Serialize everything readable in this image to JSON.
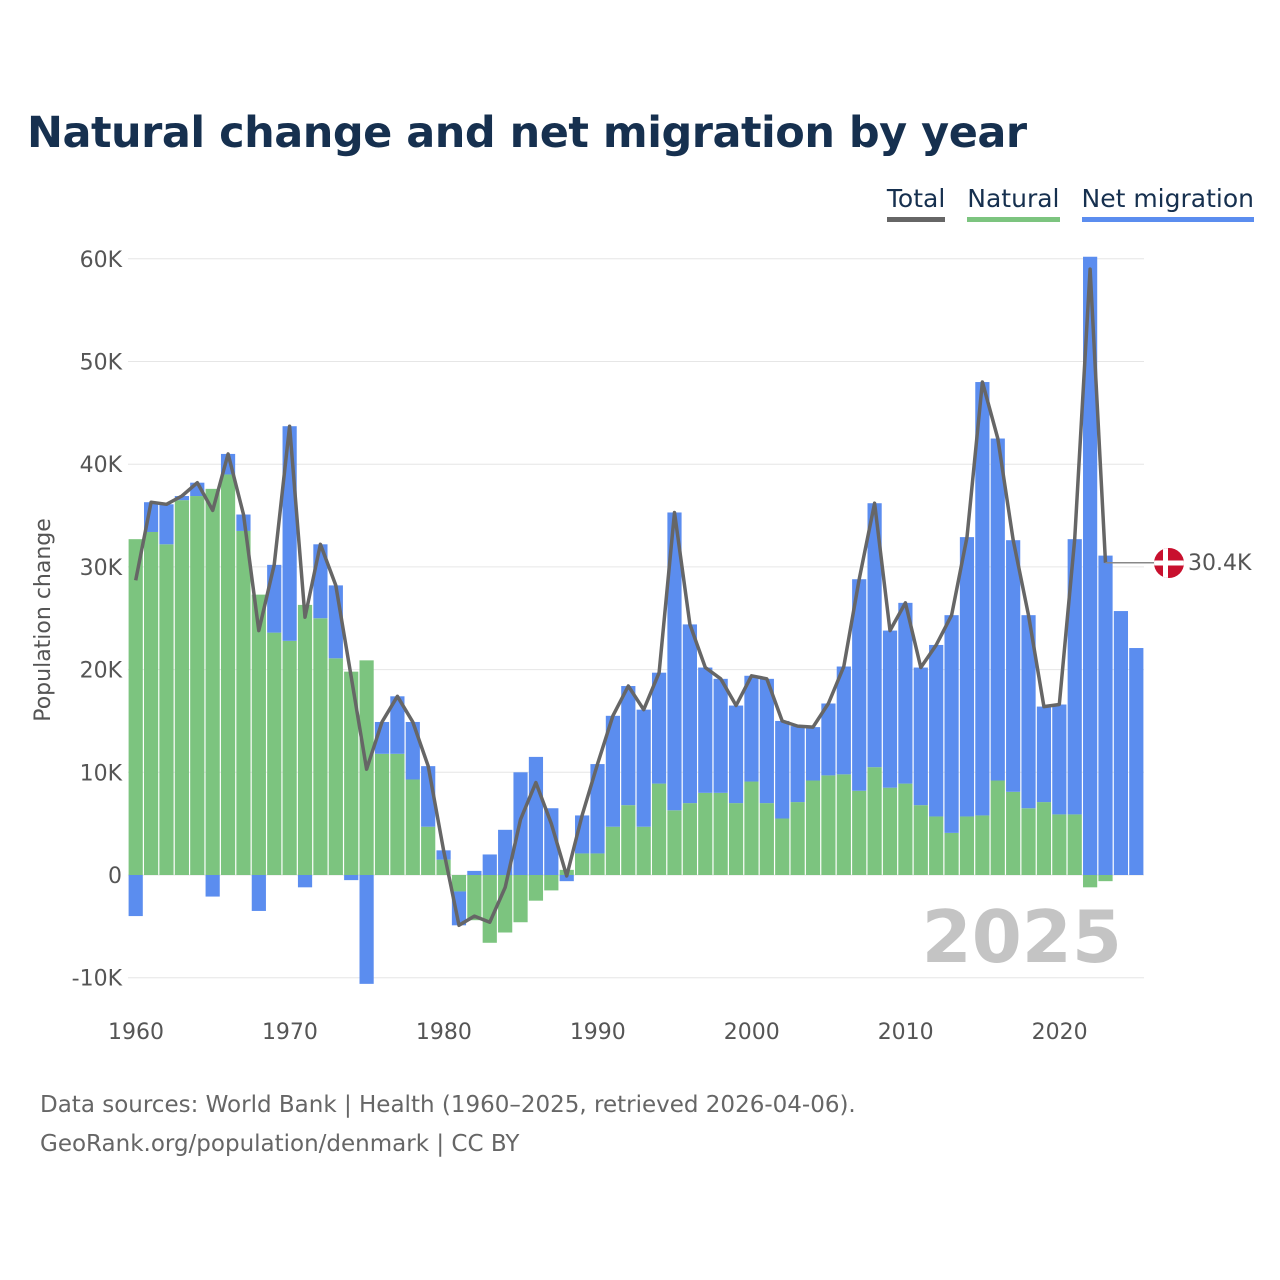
{
  "title": "Natural change and net migration by year",
  "legend": [
    {
      "label": "Total",
      "color": "#666666"
    },
    {
      "label": "Natural",
      "color": "#7cc47f"
    },
    {
      "label": "Net migration",
      "color": "#5b8def"
    }
  ],
  "watermark_year": "2025",
  "end_label": "30.4K",
  "footer": {
    "line1": "Data sources: World Bank | Health (1960–2025, retrieved 2026-04-06).",
    "line2": "GeoRank.org/population/denmark | CC BY"
  },
  "chart_data": {
    "type": "bar",
    "stacked": true,
    "title": "Natural change and net migration by year",
    "xlabel": "",
    "ylabel": "Population change",
    "ylim": [
      -13000,
      61000
    ],
    "yticks": [
      -10000,
      0,
      10000,
      20000,
      30000,
      40000,
      50000,
      60000
    ],
    "ytick_labels": [
      "-10K",
      "0",
      "10K",
      "20K",
      "30K",
      "40K",
      "50K",
      "60K"
    ],
    "xticks": [
      1960,
      1970,
      1980,
      1990,
      2000,
      2010,
      2020
    ],
    "xtick_labels": [
      "1960",
      "1970",
      "1980",
      "1990",
      "2000",
      "2010",
      "2020"
    ],
    "legend_position": "top-right",
    "grid": true,
    "years": [
      1960,
      1961,
      1962,
      1963,
      1964,
      1965,
      1966,
      1967,
      1968,
      1969,
      1970,
      1971,
      1972,
      1973,
      1974,
      1975,
      1976,
      1977,
      1978,
      1979,
      1980,
      1981,
      1982,
      1983,
      1984,
      1985,
      1986,
      1987,
      1988,
      1989,
      1990,
      1991,
      1992,
      1993,
      1994,
      1995,
      1996,
      1997,
      1998,
      1999,
      2000,
      2001,
      2002,
      2003,
      2004,
      2005,
      2006,
      2007,
      2008,
      2009,
      2010,
      2011,
      2012,
      2013,
      2014,
      2015,
      2016,
      2017,
      2018,
      2019,
      2020,
      2021,
      2022,
      2023,
      2024,
      2025
    ],
    "series": [
      {
        "name": "Natural",
        "color": "#7cc47f",
        "values": [
          32700,
          33400,
          32200,
          36500,
          36900,
          37600,
          39000,
          33500,
          27300,
          23600,
          22800,
          26300,
          25000,
          21100,
          19800,
          20900,
          11800,
          11800,
          9300,
          4700,
          1500,
          -1600,
          -4400,
          -6600,
          -5600,
          -4600,
          -2500,
          -1500,
          500,
          2100,
          2100,
          4700,
          6800,
          4700,
          8900,
          6300,
          7000,
          8000,
          8000,
          7000,
          9100,
          7000,
          5500,
          7100,
          9200,
          9700,
          9800,
          8200,
          10500,
          8500,
          8900,
          6800,
          5700,
          4100,
          5700,
          5800,
          9200,
          8100,
          6500,
          7100,
          5900,
          5900,
          -1200,
          -600,
          0,
          0
        ]
      },
      {
        "name": "Net migration",
        "color": "#5b8def",
        "values": [
          -4000,
          2900,
          3900,
          400,
          1300,
          -2100,
          2000,
          1600,
          -3500,
          6600,
          20900,
          -1200,
          7200,
          7100,
          -500,
          -10600,
          3100,
          5600,
          5600,
          5900,
          900,
          -3300,
          400,
          2000,
          4400,
          10000,
          11500,
          6500,
          -600,
          3700,
          8700,
          10800,
          11600,
          11400,
          10800,
          29000,
          17400,
          12200,
          11100,
          9500,
          10300,
          12100,
          9500,
          7400,
          5200,
          7000,
          10500,
          20600,
          25700,
          15300,
          17600,
          13400,
          16700,
          21200,
          27200,
          42200,
          33300,
          24500,
          18800,
          9300,
          10700,
          26800,
          60200,
          31100,
          25700,
          22100
        ]
      },
      {
        "name": "Total",
        "color": "#666666",
        "values": [
          28700,
          36300,
          36100,
          36900,
          38200,
          35500,
          41000,
          35100,
          23800,
          30200,
          43700,
          25100,
          32200,
          28200,
          19300,
          10300,
          14900,
          17400,
          14900,
          10600,
          2400,
          -4900,
          -4000,
          -4600,
          -1200,
          5400,
          9000,
          5000,
          -100,
          5800,
          10800,
          15500,
          18400,
          16100,
          19700,
          35300,
          24400,
          20200,
          19100,
          16500,
          19400,
          19100,
          15000,
          14500,
          14400,
          16700,
          20300,
          28800,
          36200,
          23800,
          26500,
          20200,
          22400,
          25300,
          32900,
          48000,
          42500,
          32600,
          25300,
          16400,
          16600,
          32700,
          59000,
          30400,
          null,
          null
        ]
      }
    ]
  }
}
